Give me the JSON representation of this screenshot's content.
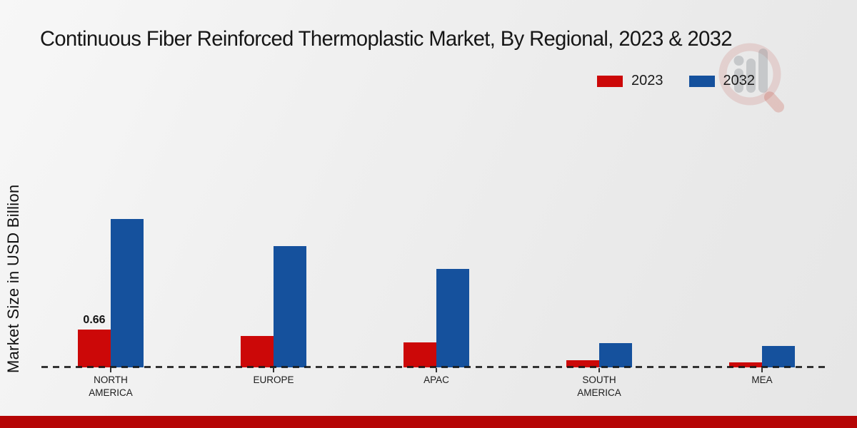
{
  "title": "Continuous Fiber Reinforced Thermoplastic Market, By Regional, 2023 & 2032",
  "y_axis_label": "Market Size in USD Billion",
  "legend": [
    {
      "label": "2023",
      "color": "#cc0808"
    },
    {
      "label": "2032",
      "color": "#15519d"
    }
  ],
  "colors": {
    "series_2023_red": "#cc0808",
    "series_2032_blue": "#15519d",
    "footer_strip_red": "#b50505",
    "baseline_dash": "#1a1a1a"
  },
  "watermark_icon": "bar-chart-magnifier-logo",
  "chart_data": {
    "type": "bar",
    "title": "Continuous Fiber Reinforced Thermoplastic Market, By Regional, 2023 & 2032",
    "categories": [
      "NORTH AMERICA",
      "EUROPE",
      "APAC",
      "SOUTH AMERICA",
      "MEA"
    ],
    "series": [
      {
        "name": "2023",
        "color": "#cc0808",
        "values": [
          0.66,
          0.55,
          0.44,
          0.12,
          0.09
        ]
      },
      {
        "name": "2032",
        "color": "#15519d",
        "values": [
          2.6,
          2.13,
          1.72,
          0.43,
          0.37
        ]
      }
    ],
    "xlabel": "",
    "ylabel": "Market Size in USD Billion",
    "ylim": [
      0,
      3
    ],
    "grid": false,
    "y_axis_ticks_visible": false,
    "baseline_style": "dashed",
    "legend_position": "top-right",
    "annotations": [
      {
        "series": "2023",
        "category": "NORTH AMERICA",
        "text": "0.66"
      }
    ]
  }
}
